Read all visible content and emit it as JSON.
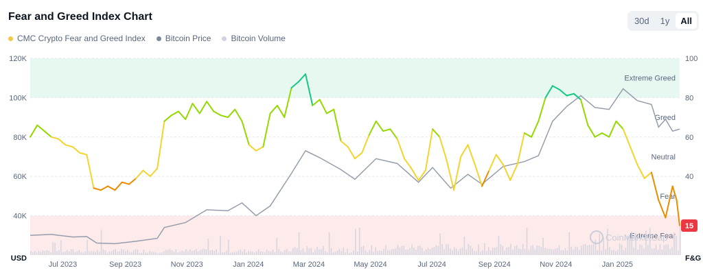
{
  "header": {
    "title": "Fear and Greed Index Chart"
  },
  "legend": [
    {
      "label": "CMC Crypto Fear and Greed Index",
      "color": "#f2c94c"
    },
    {
      "label": "Bitcoin Price",
      "color": "#7d8695"
    },
    {
      "label": "Bitcoin Volume",
      "color": "#cfd3df"
    }
  ],
  "ranges": [
    {
      "label": "30d",
      "active": false
    },
    {
      "label": "1y",
      "active": false
    },
    {
      "label": "All",
      "active": true
    }
  ],
  "chart_data": {
    "type": "line",
    "x_range": [
      "2023-06-15",
      "2025-03-20"
    ],
    "x_ticks": [
      "Jul 2023",
      "Sep 2023",
      "Nov 2023",
      "Jan 2024",
      "Mar 2024",
      "May 2024",
      "Jul 2024",
      "Sep 2024",
      "Nov 2024",
      "Jan 2025"
    ],
    "left_axis": {
      "label": "USD",
      "ticks": [
        "40K",
        "60K",
        "80K",
        "100K",
        "120K"
      ],
      "ylim": [
        20000,
        120000
      ]
    },
    "right_axis": {
      "label": "F&G",
      "ticks": [
        "40",
        "60",
        "80",
        "100"
      ],
      "ylim": [
        0,
        100
      ]
    },
    "zones": [
      {
        "label": "Extreme Greed",
        "from": 80,
        "to": 100,
        "color": "#e7f8f0"
      },
      {
        "label": "Greed",
        "from": 60,
        "to": 80
      },
      {
        "label": "Neutral",
        "from": 40,
        "to": 60
      },
      {
        "label": "Fear",
        "from": 20,
        "to": 40
      },
      {
        "label": "Extreme Fear",
        "from": 0,
        "to": 20,
        "color": "#fdeaea"
      }
    ],
    "current_value": "15",
    "watermark": "CoinMarketCap",
    "series": [
      {
        "name": "CMC Crypto Fear and Greed Index",
        "axis": "right",
        "points": [
          [
            "2023-06-15",
            60
          ],
          [
            "2023-06-22",
            66
          ],
          [
            "2023-06-29",
            63
          ],
          [
            "2023-07-06",
            60
          ],
          [
            "2023-07-13",
            59
          ],
          [
            "2023-07-20",
            56
          ],
          [
            "2023-07-27",
            55
          ],
          [
            "2023-08-03",
            52
          ],
          [
            "2023-08-10",
            51
          ],
          [
            "2023-08-17",
            34
          ],
          [
            "2023-08-24",
            33
          ],
          [
            "2023-08-31",
            35
          ],
          [
            "2023-09-07",
            33
          ],
          [
            "2023-09-14",
            37
          ],
          [
            "2023-09-21",
            36
          ],
          [
            "2023-09-28",
            39
          ],
          [
            "2023-10-05",
            43
          ],
          [
            "2023-10-12",
            40
          ],
          [
            "2023-10-19",
            44
          ],
          [
            "2023-10-26",
            68
          ],
          [
            "2023-11-02",
            71
          ],
          [
            "2023-11-09",
            73
          ],
          [
            "2023-11-16",
            69
          ],
          [
            "2023-11-23",
            77
          ],
          [
            "2023-11-30",
            72
          ],
          [
            "2023-12-07",
            78
          ],
          [
            "2023-12-14",
            73
          ],
          [
            "2023-12-21",
            71
          ],
          [
            "2023-12-28",
            70
          ],
          [
            "2024-01-04",
            74
          ],
          [
            "2024-01-11",
            68
          ],
          [
            "2024-01-18",
            56
          ],
          [
            "2024-01-25",
            53
          ],
          [
            "2024-02-01",
            55
          ],
          [
            "2024-02-08",
            72
          ],
          [
            "2024-02-15",
            76
          ],
          [
            "2024-02-22",
            70
          ],
          [
            "2024-02-29",
            85
          ],
          [
            "2024-03-07",
            88
          ],
          [
            "2024-03-14",
            92
          ],
          [
            "2024-03-21",
            76
          ],
          [
            "2024-03-28",
            79
          ],
          [
            "2024-04-04",
            72
          ],
          [
            "2024-04-11",
            74
          ],
          [
            "2024-04-18",
            58
          ],
          [
            "2024-04-25",
            55
          ],
          [
            "2024-05-02",
            49
          ],
          [
            "2024-05-09",
            52
          ],
          [
            "2024-05-16",
            61
          ],
          [
            "2024-05-23",
            68
          ],
          [
            "2024-05-30",
            63
          ],
          [
            "2024-06-06",
            64
          ],
          [
            "2024-06-13",
            59
          ],
          [
            "2024-06-20",
            49
          ],
          [
            "2024-06-27",
            44
          ],
          [
            "2024-07-04",
            38
          ],
          [
            "2024-07-11",
            43
          ],
          [
            "2024-07-18",
            64
          ],
          [
            "2024-07-25",
            60
          ],
          [
            "2024-08-01",
            48
          ],
          [
            "2024-08-08",
            33
          ],
          [
            "2024-08-15",
            50
          ],
          [
            "2024-08-22",
            56
          ],
          [
            "2024-08-29",
            46
          ],
          [
            "2024-09-05",
            35
          ],
          [
            "2024-09-12",
            43
          ],
          [
            "2024-09-19",
            51
          ],
          [
            "2024-09-26",
            46
          ],
          [
            "2024-10-03",
            38
          ],
          [
            "2024-10-10",
            46
          ],
          [
            "2024-10-17",
            62
          ],
          [
            "2024-10-24",
            60
          ],
          [
            "2024-10-31",
            68
          ],
          [
            "2024-11-07",
            80
          ],
          [
            "2024-11-14",
            86
          ],
          [
            "2024-11-21",
            84
          ],
          [
            "2024-11-28",
            81
          ],
          [
            "2024-12-05",
            82
          ],
          [
            "2024-12-12",
            79
          ],
          [
            "2024-12-19",
            66
          ],
          [
            "2024-12-26",
            60
          ],
          [
            "2025-01-02",
            62
          ],
          [
            "2025-01-09",
            60
          ],
          [
            "2025-01-16",
            68
          ],
          [
            "2025-01-23",
            64
          ],
          [
            "2025-01-30",
            55
          ],
          [
            "2025-02-06",
            46
          ],
          [
            "2025-02-13",
            39
          ],
          [
            "2025-02-20",
            42
          ],
          [
            "2025-02-27",
            28
          ],
          [
            "2025-03-06",
            19
          ],
          [
            "2025-03-13",
            35
          ],
          [
            "2025-03-17",
            28
          ],
          [
            "2025-03-20",
            15
          ]
        ]
      },
      {
        "name": "Bitcoin Price",
        "axis": "left",
        "points": [
          [
            "2023-06-15",
            30000
          ],
          [
            "2023-07-06",
            30500
          ],
          [
            "2023-07-27",
            29200
          ],
          [
            "2023-08-10",
            29400
          ],
          [
            "2023-08-20",
            26100
          ],
          [
            "2023-09-07",
            25800
          ],
          [
            "2023-09-28",
            27000
          ],
          [
            "2023-10-19",
            28500
          ],
          [
            "2023-10-26",
            34000
          ],
          [
            "2023-11-16",
            36500
          ],
          [
            "2023-12-07",
            43000
          ],
          [
            "2023-12-28",
            42500
          ],
          [
            "2024-01-11",
            46500
          ],
          [
            "2024-01-25",
            40000
          ],
          [
            "2024-02-08",
            45000
          ],
          [
            "2024-02-29",
            61500
          ],
          [
            "2024-03-14",
            73000
          ],
          [
            "2024-03-28",
            69500
          ],
          [
            "2024-04-18",
            63500
          ],
          [
            "2024-05-02",
            58500
          ],
          [
            "2024-05-23",
            69000
          ],
          [
            "2024-06-13",
            66500
          ],
          [
            "2024-07-04",
            57000
          ],
          [
            "2024-07-18",
            64500
          ],
          [
            "2024-08-05",
            54000
          ],
          [
            "2024-08-22",
            61000
          ],
          [
            "2024-09-05",
            56000
          ],
          [
            "2024-09-26",
            65000
          ],
          [
            "2024-10-17",
            67500
          ],
          [
            "2024-10-31",
            70500
          ],
          [
            "2024-11-14",
            88000
          ],
          [
            "2024-11-28",
            95500
          ],
          [
            "2024-12-12",
            101000
          ],
          [
            "2024-12-26",
            95000
          ],
          [
            "2025-01-09",
            94000
          ],
          [
            "2025-01-23",
            104500
          ],
          [
            "2025-02-06",
            98500
          ],
          [
            "2025-02-20",
            96500
          ],
          [
            "2025-02-27",
            85000
          ],
          [
            "2025-03-06",
            89000
          ],
          [
            "2025-03-13",
            83000
          ],
          [
            "2025-03-20",
            84000
          ]
        ]
      },
      {
        "name": "Bitcoin Volume",
        "axis": "volume"
      }
    ]
  }
}
